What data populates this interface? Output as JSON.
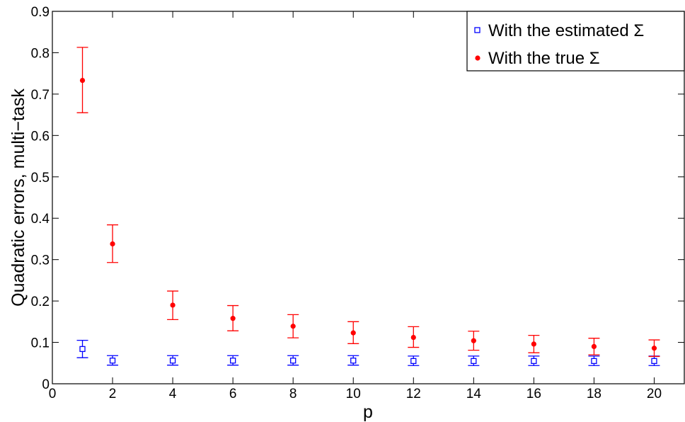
{
  "chart_data": {
    "type": "scatter",
    "title": "",
    "xlabel": "p",
    "ylabel": "Quadratic errors, multi−task",
    "xlim": [
      0,
      21
    ],
    "ylim": [
      0,
      0.9
    ],
    "xticks": [
      0,
      2,
      4,
      6,
      8,
      10,
      12,
      14,
      16,
      18,
      20
    ],
    "yticks": [
      0,
      0.1,
      0.2,
      0.3,
      0.4,
      0.5,
      0.6,
      0.7,
      0.8,
      0.9
    ],
    "xtick_labels": [
      "0",
      "2",
      "4",
      "6",
      "8",
      "10",
      "12",
      "14",
      "16",
      "18",
      "20"
    ],
    "ytick_labels": [
      "0",
      "0.1",
      "0.2",
      "0.3",
      "0.4",
      "0.5",
      "0.6",
      "0.7",
      "0.8",
      "0.9"
    ],
    "grid": false,
    "legend_position": "top-right",
    "series": [
      {
        "name": "With the estimated Σ",
        "color": "#0000ff",
        "marker": "square-open",
        "x": [
          1,
          2,
          4,
          6,
          8,
          10,
          12,
          14,
          16,
          18,
          20
        ],
        "y": [
          0.084,
          0.056,
          0.056,
          0.056,
          0.056,
          0.056,
          0.055,
          0.055,
          0.055,
          0.055,
          0.055
        ],
        "err_low": [
          0.063,
          0.045,
          0.045,
          0.045,
          0.045,
          0.045,
          0.044,
          0.044,
          0.044,
          0.044,
          0.044
        ],
        "err_high": [
          0.105,
          0.068,
          0.068,
          0.068,
          0.068,
          0.068,
          0.067,
          0.067,
          0.067,
          0.067,
          0.067
        ]
      },
      {
        "name": "With the true Σ",
        "color": "#ff0000",
        "marker": "dot",
        "x": [
          1,
          2,
          4,
          6,
          8,
          10,
          12,
          14,
          16,
          18,
          20
        ],
        "y": [
          0.733,
          0.338,
          0.19,
          0.158,
          0.139,
          0.123,
          0.112,
          0.104,
          0.096,
          0.09,
          0.086
        ],
        "err_low": [
          0.655,
          0.293,
          0.155,
          0.128,
          0.111,
          0.097,
          0.088,
          0.081,
          0.075,
          0.07,
          0.066
        ],
        "err_high": [
          0.813,
          0.384,
          0.224,
          0.189,
          0.167,
          0.15,
          0.138,
          0.127,
          0.117,
          0.11,
          0.106
        ]
      }
    ]
  }
}
